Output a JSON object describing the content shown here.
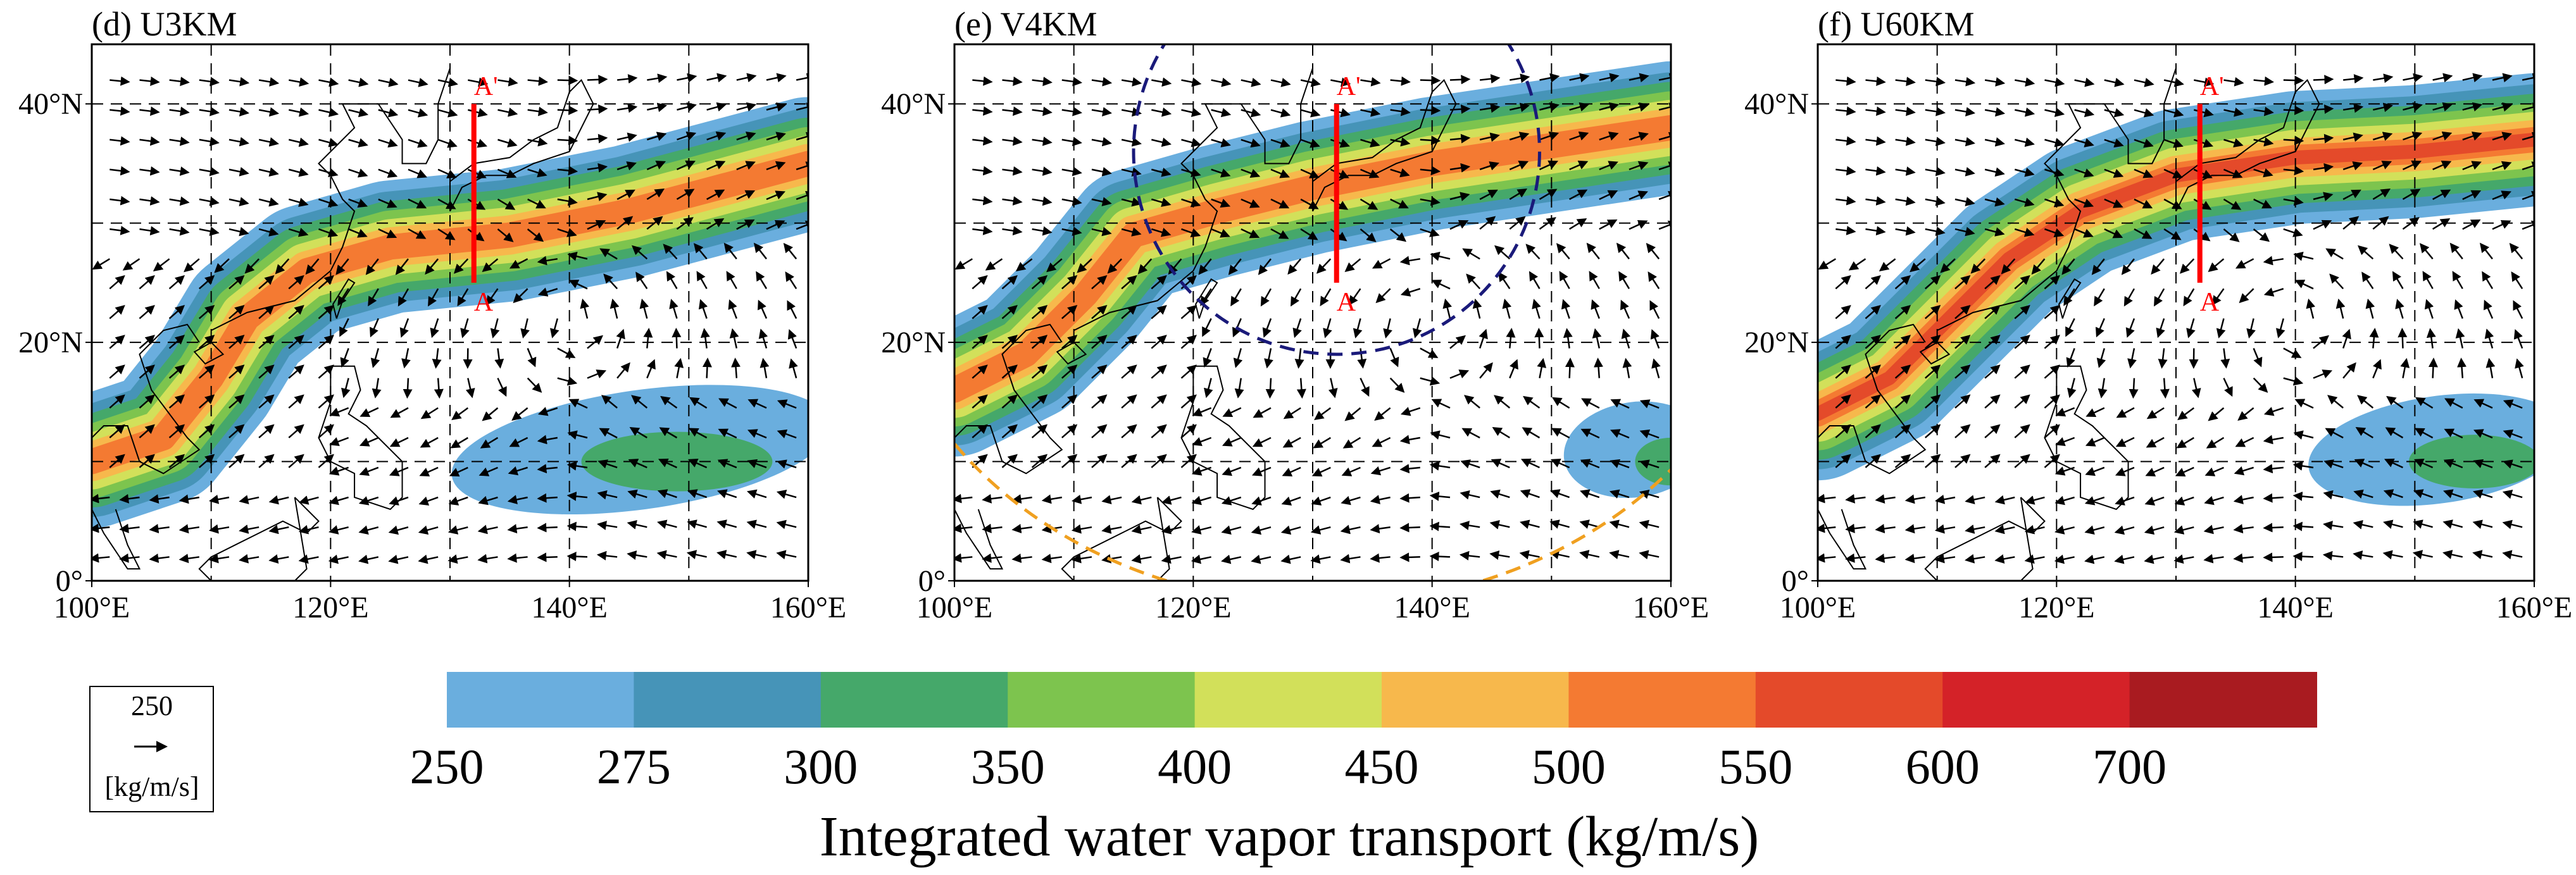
{
  "panels": [
    {
      "id": "d",
      "title": "(d) U3KM"
    },
    {
      "id": "e",
      "title": "(e) V4KM"
    },
    {
      "id": "f",
      "title": "(f) U60KM"
    }
  ],
  "axes": {
    "x_ticks": [
      "100°E",
      "120°E",
      "140°E",
      "160°E"
    ],
    "y_ticks": [
      "0°",
      "20°N",
      "40°N"
    ],
    "lon_range": [
      100,
      160
    ],
    "lat_range": [
      0,
      45
    ]
  },
  "cross_section": {
    "lon": 132,
    "lat_start": 25,
    "lat_end": 40,
    "label_start": "A",
    "label_end": "A'"
  },
  "reference_vector": {
    "value": "250",
    "unit": "[kg/m/s]"
  },
  "colorbar": {
    "title": "Integrated water vapor transport (kg/m/s)",
    "tick_labels": [
      "250",
      "275",
      "300",
      "350",
      "400",
      "450",
      "500",
      "550",
      "600",
      "700"
    ],
    "colors": [
      "#6aaede",
      "#4694b8",
      "#45a86a",
      "#7dc44e",
      "#d2e05a",
      "#f7b84c",
      "#f47a32",
      "#e44a2a",
      "#d42228",
      "#a91b20"
    ]
  },
  "chart_data": {
    "type": "heatmap",
    "description_series": [
      {
        "name": "(d) U3KM",
        "river_band": {
          "max_class": "550"
        }
      },
      {
        "name": "(e) V4KM",
        "river_band": {
          "max_class": "550"
        }
      },
      {
        "name": "(f) U60KM",
        "river_band": {
          "max_class": "600"
        }
      }
    ],
    "x_range": [
      100,
      160
    ],
    "y_range": [
      0,
      45
    ],
    "levels": [
      250,
      275,
      300,
      350,
      400,
      450,
      500,
      550,
      600,
      700
    ]
  }
}
